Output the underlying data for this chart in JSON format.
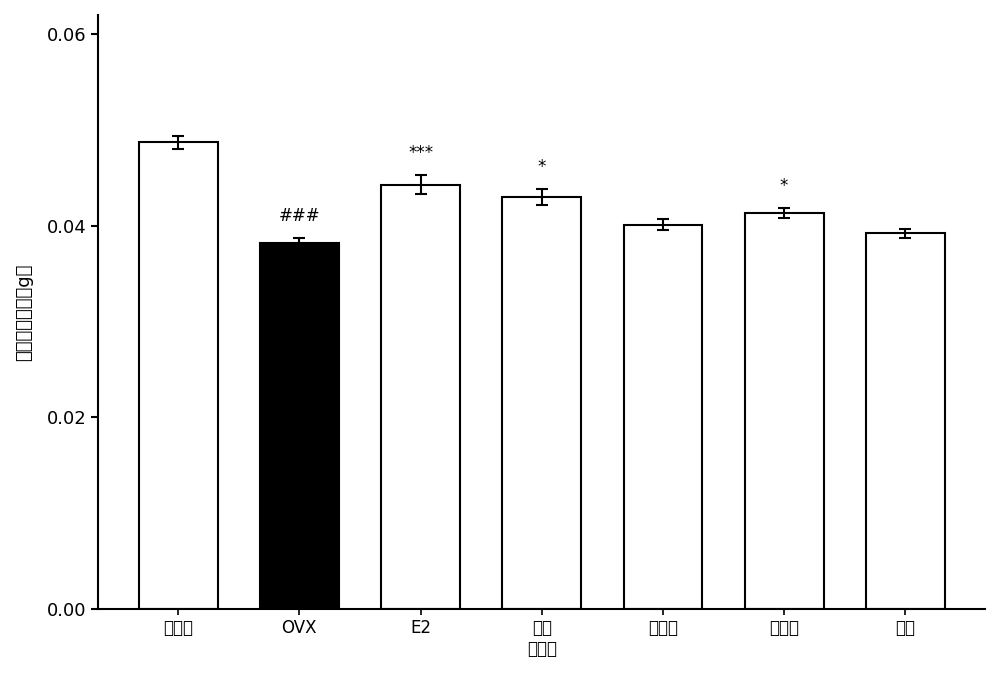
{
  "categories": [
    "正常組",
    "OVX",
    "E2",
    "組合\n提取物",
    "五味子",
    "枸杞子",
    "杜仲"
  ],
  "values": [
    0.0487,
    0.0382,
    0.0443,
    0.043,
    0.0401,
    0.0413,
    0.0392
  ],
  "errors": [
    0.0007,
    0.0005,
    0.001,
    0.0008,
    0.0006,
    0.0005,
    0.0005
  ],
  "bar_colors": [
    "white",
    "black",
    "white",
    "white",
    "white",
    "white",
    "white"
  ],
  "bar_edge_colors": [
    "black",
    "black",
    "black",
    "black",
    "black",
    "black",
    "black"
  ],
  "annotations": [
    "",
    "###",
    "***",
    "*",
    "",
    "*",
    ""
  ],
  "ylabel": "骨礦物質含量（g）",
  "ylim": [
    0,
    0.062
  ],
  "yticks": [
    0.0,
    0.02,
    0.04,
    0.06
  ],
  "bar_width": 0.65,
  "figsize": [
    10.0,
    6.73
  ],
  "dpi": 100,
  "ylabel_fontsize": 13,
  "tick_fontsize": 13,
  "annotation_fontsize": 12,
  "xtick_fontsize": 12,
  "background_color": "#ffffff",
  "plot_bg_color": "#ffffff"
}
